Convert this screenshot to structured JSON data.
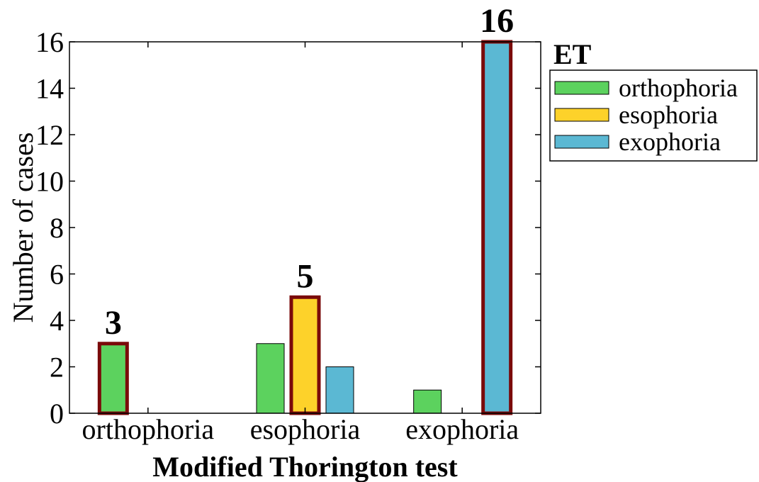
{
  "chart_data": {
    "type": "bar",
    "xlabel": "Modified Thorington test",
    "ylabel": "Number of cases",
    "categories": [
      "orthophoria",
      "esophoria",
      "exophoria"
    ],
    "ylim": [
      0,
      16
    ],
    "yticks": [
      "0",
      "2",
      "4",
      "6",
      "8",
      "10",
      "12",
      "14",
      "16"
    ],
    "grid": false,
    "legend": {
      "title": "ET",
      "placement": "outside-top-right"
    },
    "series": [
      {
        "name": "orthophoria",
        "color": "#5cd25e",
        "values": [
          3,
          3,
          1
        ]
      },
      {
        "name": "esophoria",
        "color": "#fdd22a",
        "values": [
          0,
          5,
          0
        ]
      },
      {
        "name": "exophoria",
        "color": "#5bb8d3",
        "values": [
          0,
          2,
          16
        ]
      }
    ],
    "highlights": [
      {
        "category": "orthophoria",
        "series": "orthophoria",
        "label": "3"
      },
      {
        "category": "esophoria",
        "series": "esophoria",
        "label": "5"
      },
      {
        "category": "exophoria",
        "series": "exophoria",
        "label": "16"
      }
    ],
    "highlight_color": "#7a0a0a"
  }
}
